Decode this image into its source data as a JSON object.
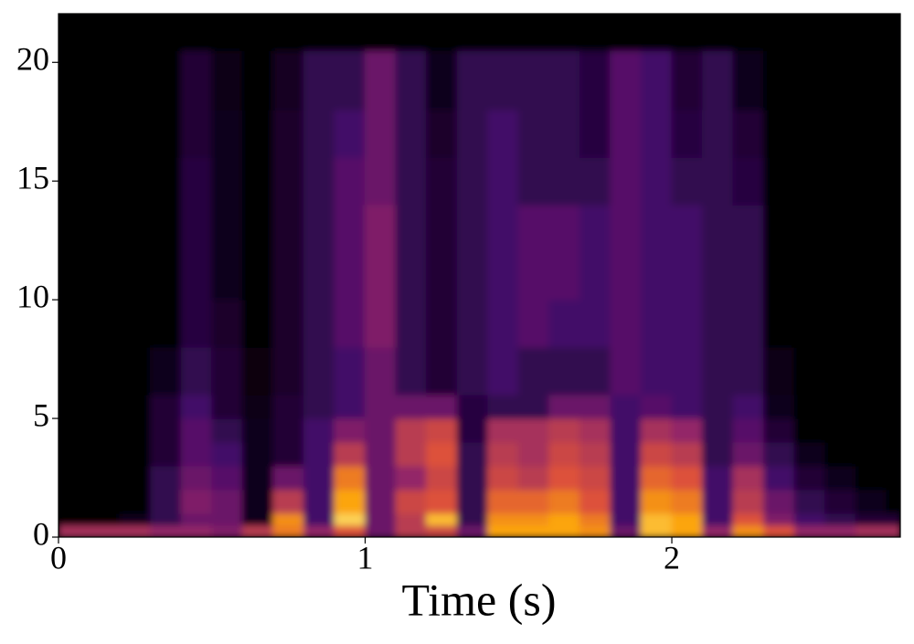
{
  "chart_data": {
    "type": "spectrogram",
    "xlabel": "Time (s)",
    "x": [
      0,
      0.1,
      0.2,
      0.3,
      0.4,
      0.5,
      0.6,
      0.7,
      0.8,
      0.9,
      1.0,
      1.1,
      1.2,
      1.3,
      1.4,
      1.5,
      1.6,
      1.7,
      1.8,
      1.9,
      2.0,
      2.1,
      2.2,
      2.3,
      2.4,
      2.5,
      2.6,
      2.7,
      2.745
    ],
    "y": [
      0,
      0.5,
      1,
      2,
      3,
      4,
      5,
      6,
      8,
      10,
      12,
      14,
      16,
      18,
      20.5,
      22.05
    ],
    "values": [
      [
        0.45,
        0,
        0,
        0,
        0,
        0,
        0,
        0,
        0,
        0,
        0,
        0,
        0,
        0,
        0
      ],
      [
        0.45,
        0,
        0,
        0,
        0,
        0,
        0,
        0,
        0,
        0,
        0,
        0,
        0,
        0,
        0
      ],
      [
        0.45,
        0.05,
        0,
        0,
        0,
        0,
        0,
        0,
        0,
        0,
        0,
        0,
        0,
        0,
        0
      ],
      [
        0.4,
        0.15,
        0.15,
        0.15,
        0.1,
        0.1,
        0.1,
        0.05,
        0,
        0,
        0,
        0,
        0,
        0,
        0
      ],
      [
        0.4,
        0.3,
        0.35,
        0.3,
        0.25,
        0.25,
        0.2,
        0.15,
        0.12,
        0.12,
        0.12,
        0.12,
        0.1,
        0.1,
        0
      ],
      [
        0.35,
        0.3,
        0.3,
        0.25,
        0.2,
        0.15,
        0.1,
        0.1,
        0.08,
        0.05,
        0.05,
        0.05,
        0.05,
        0.03,
        0
      ],
      [
        0.5,
        0.05,
        0.05,
        0.05,
        0.05,
        0.05,
        0.03,
        0.02,
        0,
        0,
        0,
        0,
        0,
        0,
        0
      ],
      [
        0.7,
        0.75,
        0.5,
        0.3,
        0.1,
        0.1,
        0.1,
        0.08,
        0.08,
        0.08,
        0.08,
        0.08,
        0.08,
        0.06,
        0
      ],
      [
        0.4,
        0.2,
        0.2,
        0.2,
        0.2,
        0.2,
        0.15,
        0.15,
        0.15,
        0.15,
        0.15,
        0.15,
        0.15,
        0.15,
        0
      ],
      [
        0.6,
        0.9,
        0.8,
        0.7,
        0.5,
        0.35,
        0.2,
        0.2,
        0.25,
        0.25,
        0.25,
        0.25,
        0.2,
        0.15,
        0
      ],
      [
        0.3,
        0.3,
        0.3,
        0.3,
        0.3,
        0.3,
        0.3,
        0.3,
        0.35,
        0.35,
        0.35,
        0.3,
        0.3,
        0.3,
        0
      ],
      [
        0.5,
        0.5,
        0.55,
        0.4,
        0.5,
        0.5,
        0.3,
        0.15,
        0.15,
        0.15,
        0.15,
        0.15,
        0.15,
        0.15,
        0
      ],
      [
        0.55,
        0.85,
        0.6,
        0.55,
        0.6,
        0.55,
        0.3,
        0.1,
        0.1,
        0.1,
        0.1,
        0.1,
        0.08,
        0.05,
        0
      ],
      [
        0.3,
        0.15,
        0.15,
        0.15,
        0.15,
        0.12,
        0.12,
        0.15,
        0.15,
        0.15,
        0.15,
        0.15,
        0.15,
        0.15,
        0
      ],
      [
        0.8,
        0.75,
        0.65,
        0.55,
        0.5,
        0.45,
        0.15,
        0.2,
        0.2,
        0.2,
        0.2,
        0.2,
        0.2,
        0.15,
        0
      ],
      [
        0.8,
        0.75,
        0.65,
        0.5,
        0.45,
        0.45,
        0.15,
        0.15,
        0.25,
        0.25,
        0.25,
        0.15,
        0.15,
        0.15,
        0
      ],
      [
        0.8,
        0.8,
        0.7,
        0.6,
        0.55,
        0.5,
        0.3,
        0.15,
        0.2,
        0.25,
        0.25,
        0.15,
        0.15,
        0.15,
        0
      ],
      [
        0.75,
        0.7,
        0.6,
        0.55,
        0.5,
        0.45,
        0.3,
        0.15,
        0.2,
        0.2,
        0.2,
        0.15,
        0.12,
        0.12,
        0
      ],
      [
        0.3,
        0.2,
        0.2,
        0.2,
        0.2,
        0.2,
        0.2,
        0.25,
        0.25,
        0.25,
        0.25,
        0.25,
        0.25,
        0.25,
        0
      ],
      [
        0.85,
        0.85,
        0.75,
        0.65,
        0.55,
        0.45,
        0.25,
        0.2,
        0.2,
        0.2,
        0.2,
        0.2,
        0.2,
        0.2,
        0
      ],
      [
        0.8,
        0.8,
        0.7,
        0.6,
        0.5,
        0.4,
        0.2,
        0.2,
        0.2,
        0.2,
        0.2,
        0.15,
        0.12,
        0.1,
        0
      ],
      [
        0.4,
        0.2,
        0.2,
        0.2,
        0.15,
        0.15,
        0.15,
        0.15,
        0.15,
        0.15,
        0.15,
        0.15,
        0.15,
        0.15,
        0
      ],
      [
        0.75,
        0.6,
        0.5,
        0.45,
        0.3,
        0.25,
        0.2,
        0.15,
        0.15,
        0.15,
        0.15,
        0.12,
        0.1,
        0.05,
        0
      ],
      [
        0.6,
        0.35,
        0.3,
        0.2,
        0.15,
        0.1,
        0.05,
        0.03,
        0,
        0,
        0,
        0,
        0,
        0,
        0
      ],
      [
        0.4,
        0.2,
        0.15,
        0.1,
        0.05,
        0,
        0,
        0,
        0,
        0,
        0,
        0,
        0,
        0,
        0
      ],
      [
        0.4,
        0.15,
        0.1,
        0.05,
        0,
        0,
        0,
        0,
        0,
        0,
        0,
        0,
        0,
        0,
        0
      ],
      [
        0.45,
        0.1,
        0.05,
        0,
        0,
        0,
        0,
        0,
        0,
        0,
        0,
        0,
        0,
        0,
        0
      ],
      [
        0.45,
        0.1,
        0,
        0,
        0,
        0,
        0,
        0,
        0,
        0,
        0,
        0,
        0,
        0,
        0
      ]
    ],
    "clim": [
      0,
      1
    ],
    "colormap": [
      "#000004",
      "#420a68",
      "#932667",
      "#dd513a",
      "#fca50a",
      "#fcffa4"
    ],
    "xlim": [
      0,
      2.745
    ],
    "xticks": [
      0,
      1,
      2
    ],
    "ylim": [
      0,
      22.05
    ],
    "yticks": [
      0,
      5,
      10,
      15,
      20
    ]
  }
}
